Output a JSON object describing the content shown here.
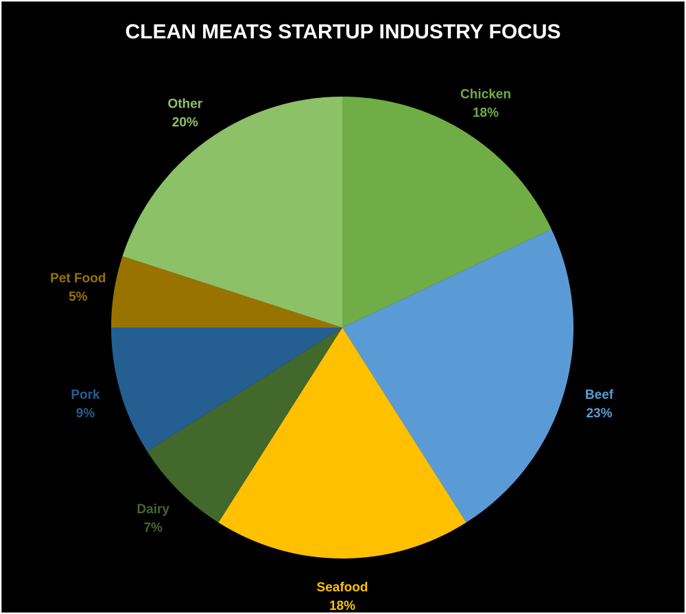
{
  "chart_data": {
    "type": "pie",
    "title": "CLEAN MEATS STARTUP INDUSTRY FOCUS",
    "slices": [
      {
        "label": "Chicken",
        "value": 18,
        "value_label": "18%",
        "color": "#70AD47",
        "label_color": "#70AD47"
      },
      {
        "label": "Beef",
        "value": 23,
        "value_label": "23%",
        "color": "#5B9BD5",
        "label_color": "#5B9BD5"
      },
      {
        "label": "Seafood",
        "value": 18,
        "value_label": "18%",
        "color": "#FFC000",
        "label_color": "#FFC000"
      },
      {
        "label": "Dairy",
        "value": 7,
        "value_label": "7%",
        "color": "#43682B",
        "label_color": "#43682B"
      },
      {
        "label": "Pork",
        "value": 9,
        "value_label": "9%",
        "color": "#255E91",
        "label_color": "#255E91"
      },
      {
        "label": "Pet Food",
        "value": 5,
        "value_label": "5%",
        "color": "#997300",
        "label_color": "#997300"
      },
      {
        "label": "Other",
        "value": 20,
        "value_label": "20%",
        "color": "#8CC168",
        "label_color": "#8CC168"
      }
    ],
    "start_angle_deg": 0,
    "direction": "clockwise",
    "legend": "none",
    "background": "#000000"
  }
}
